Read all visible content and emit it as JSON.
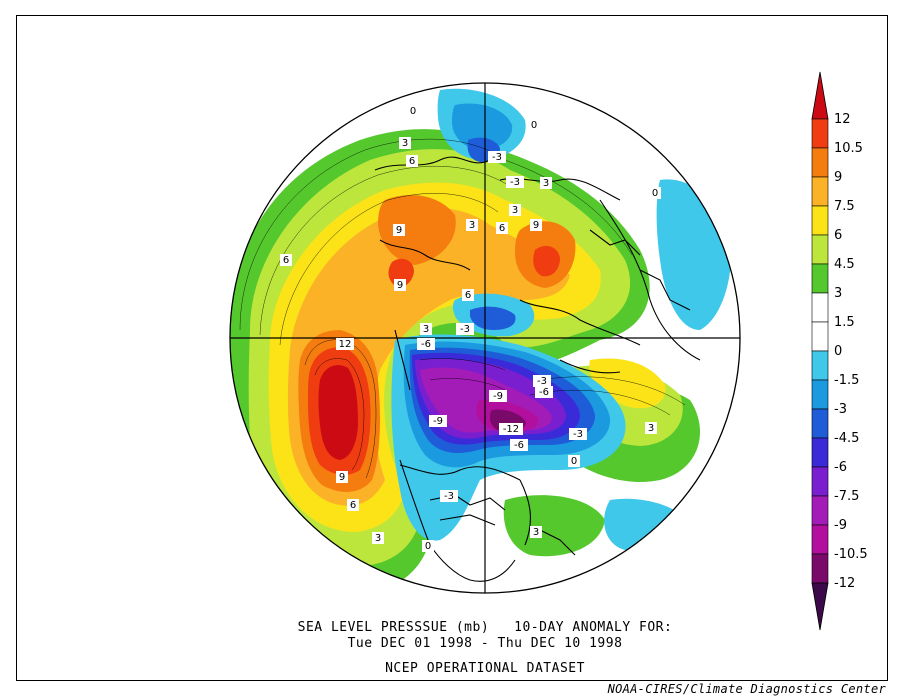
{
  "title": {
    "line1": "SEA LEVEL PRESSSUE (mb)   10-DAY ANOMALY FOR:",
    "line2": "Tue DEC 01 1998 - Thu DEC 10 1998",
    "line3": "NCEP OPERATIONAL DATASET"
  },
  "credit": "NOAA-CIRES/Climate Diagnostics Center",
  "colorbar": {
    "labels": [
      "12",
      "10.5",
      "9",
      "7.5",
      "6",
      "4.5",
      "3",
      "1.5",
      "0",
      "-1.5",
      "-3",
      "-4.5",
      "-6",
      "-7.5",
      "-9",
      "-10.5",
      "-12"
    ],
    "colors": [
      "#cc0a14",
      "#ef3c10",
      "#f57d0f",
      "#fbb226",
      "#fbe318",
      "#bde63c",
      "#55c82e",
      "#ffffff",
      "#ffffff",
      "#40c8ea",
      "#1b9ae0",
      "#1f5cd8",
      "#3a2ad8",
      "#7a1fd0",
      "#a31cb8",
      "#b20f9e",
      "#7a0a6a",
      "#3c0a4a"
    ]
  },
  "contour_labels": {
    "positive": [
      "12",
      "9",
      "6",
      "3",
      "9",
      "6",
      "3",
      "9",
      "6",
      "3",
      "6",
      "3",
      "9",
      "3",
      "6",
      "3",
      "3",
      "3"
    ],
    "negative": [
      "-3",
      "-3",
      "-6",
      "-9",
      "-9",
      "-12",
      "-6",
      "-6",
      "-3",
      "-3",
      "-3",
      "-3"
    ],
    "zero": [
      "0",
      "0",
      "0",
      "0",
      "0"
    ]
  }
}
